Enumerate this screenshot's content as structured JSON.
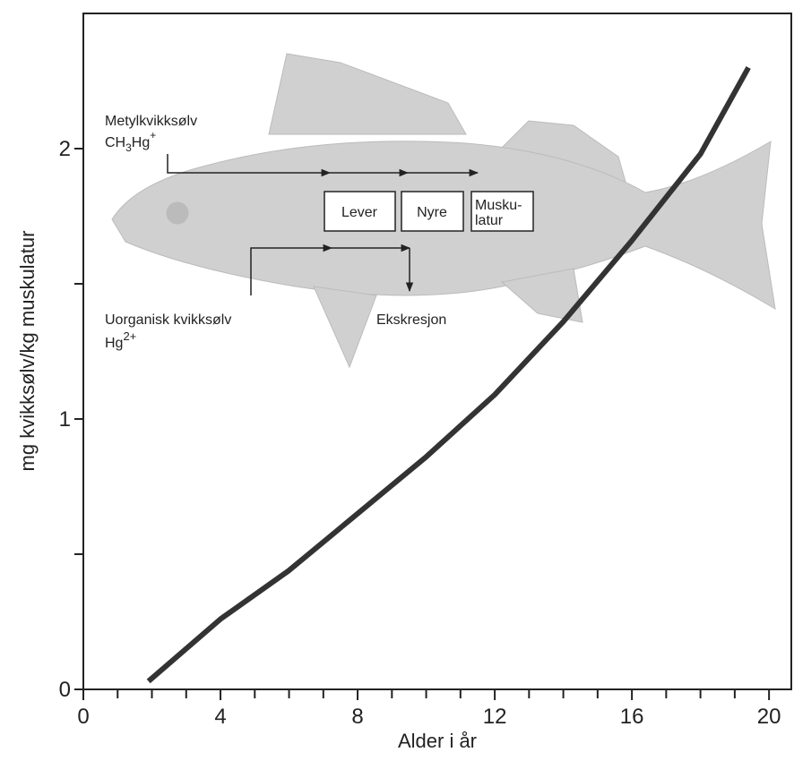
{
  "chart_data": {
    "type": "line",
    "xlabel": "Alder i år",
    "ylabel": "mg kvikksølv/kg muskulatur",
    "x": [
      1.9,
      4,
      6,
      8,
      10,
      12,
      14,
      16,
      18,
      19.4
    ],
    "series": [
      {
        "color": "#333333",
        "values": [
          0.03,
          0.26,
          0.44,
          0.65,
          0.86,
          1.09,
          1.36,
          1.66,
          1.98,
          2.3
        ]
      }
    ],
    "xlim": [
      0,
      20.65
    ],
    "ylim": [
      0,
      2.5
    ],
    "xticks": [
      0,
      4,
      8,
      12,
      16,
      20
    ],
    "xminor_ticks": [
      1,
      2,
      3,
      5,
      6,
      7,
      9,
      10,
      11,
      13,
      14,
      15,
      17,
      18,
      19
    ],
    "yticks": [
      0,
      1,
      2
    ],
    "yminor_ticks": [
      0.5,
      1.5
    ],
    "annotations": {
      "methyl": "Metylkvikksølv",
      "methyl_formula": [
        "CH",
        "3",
        "Hg",
        "+"
      ],
      "organs": [
        "Lever",
        "Nyre"
      ],
      "muscle": [
        "Musku-",
        "latur"
      ],
      "inorganic": "Uorganisk kvikksølv",
      "inorganic_formula": [
        "Hg",
        "2+"
      ],
      "excretion": "Ekskresjon"
    }
  }
}
